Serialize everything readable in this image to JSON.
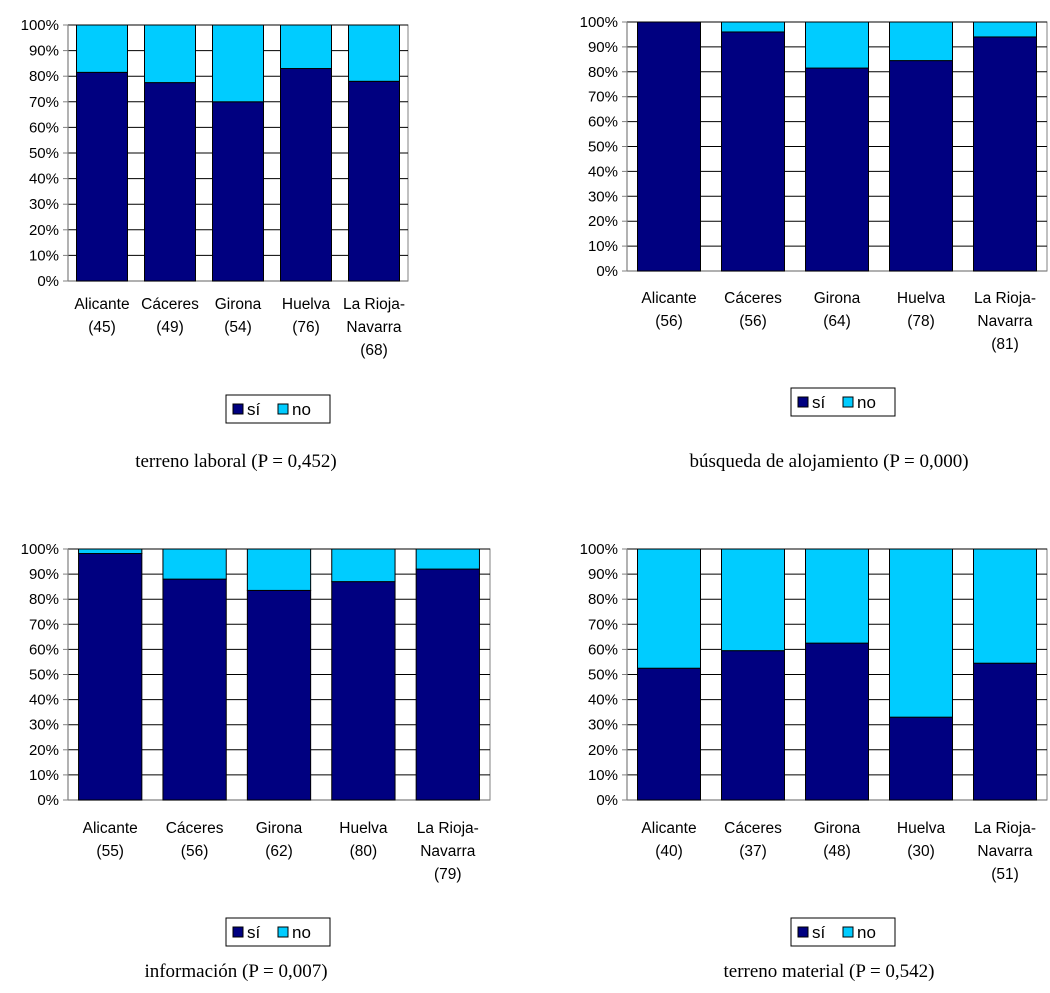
{
  "colors": {
    "si": "#000080",
    "no": "#00ccff",
    "axis": "#808080"
  },
  "chart_data": [
    {
      "type": "bar",
      "stacked": true,
      "percent": true,
      "title": "terreno laboral (P = 0,452)",
      "categories": [
        [
          "Alicante",
          "(45)"
        ],
        [
          "Cáceres",
          "(49)"
        ],
        [
          "Girona",
          "(54)"
        ],
        [
          "Huelva",
          "(76)"
        ],
        [
          "La Rioja-",
          "Navarra",
          "(68)"
        ]
      ],
      "series": [
        {
          "name": "sí",
          "values": [
            81.5,
            77.5,
            70,
            83,
            78
          ]
        },
        {
          "name": "no",
          "values": [
            18.5,
            22.5,
            30,
            17,
            22
          ]
        }
      ],
      "yticks": [
        "0%",
        "10%",
        "20%",
        "30%",
        "40%",
        "50%",
        "60%",
        "70%",
        "80%",
        "90%",
        "100%"
      ],
      "ylim": [
        0,
        100
      ],
      "legend": "bottom-center",
      "grid": true
    },
    {
      "type": "bar",
      "stacked": true,
      "percent": true,
      "title": "búsqueda de alojamiento (P = 0,000)",
      "categories": [
        [
          "Alicante",
          "(56)"
        ],
        [
          "Cáceres",
          "(56)"
        ],
        [
          "Girona",
          "(64)"
        ],
        [
          "Huelva",
          "(78)"
        ],
        [
          "La Rioja-",
          "Navarra",
          "(81)"
        ]
      ],
      "series": [
        {
          "name": "sí",
          "values": [
            100,
            96,
            81.5,
            84.5,
            94
          ]
        },
        {
          "name": "no",
          "values": [
            0,
            4,
            18.5,
            15.5,
            6
          ]
        }
      ],
      "yticks": [
        "0%",
        "10%",
        "20%",
        "30%",
        "40%",
        "50%",
        "60%",
        "70%",
        "80%",
        "90%",
        "100%"
      ],
      "ylim": [
        0,
        100
      ],
      "legend": "bottom-center",
      "grid": true
    },
    {
      "type": "bar",
      "stacked": true,
      "percent": true,
      "title": "información (P = 0,007)",
      "categories": [
        [
          "Alicante",
          "(55)"
        ],
        [
          "Cáceres",
          "(56)"
        ],
        [
          "Girona",
          "(62)"
        ],
        [
          "Huelva",
          "(80)"
        ],
        [
          "La Rioja-",
          "Navarra",
          "(79)"
        ]
      ],
      "series": [
        {
          "name": "sí",
          "values": [
            98.2,
            88,
            83.5,
            87,
            92
          ]
        },
        {
          "name": "no",
          "values": [
            1.8,
            12,
            16.5,
            13,
            8
          ]
        }
      ],
      "yticks": [
        "0%",
        "10%",
        "20%",
        "30%",
        "40%",
        "50%",
        "60%",
        "70%",
        "80%",
        "90%",
        "100%"
      ],
      "ylim": [
        0,
        100
      ],
      "legend": "bottom-center",
      "grid": true
    },
    {
      "type": "bar",
      "stacked": true,
      "percent": true,
      "title": "terreno material (P = 0,542)",
      "categories": [
        [
          "Alicante",
          "(40)"
        ],
        [
          "Cáceres",
          "(37)"
        ],
        [
          "Girona",
          "(48)"
        ],
        [
          "Huelva",
          "(30)"
        ],
        [
          "La Rioja-",
          "Navarra",
          "(51)"
        ]
      ],
      "series": [
        {
          "name": "sí",
          "values": [
            52.5,
            59.5,
            62.5,
            33,
            54.5
          ]
        },
        {
          "name": "no",
          "values": [
            47.5,
            40.5,
            37.5,
            67,
            45.5
          ]
        }
      ],
      "yticks": [
        "0%",
        "10%",
        "20%",
        "30%",
        "40%",
        "50%",
        "60%",
        "70%",
        "80%",
        "90%",
        "100%"
      ],
      "ylim": [
        0,
        100
      ],
      "legend": "bottom-center",
      "grid": true
    }
  ]
}
